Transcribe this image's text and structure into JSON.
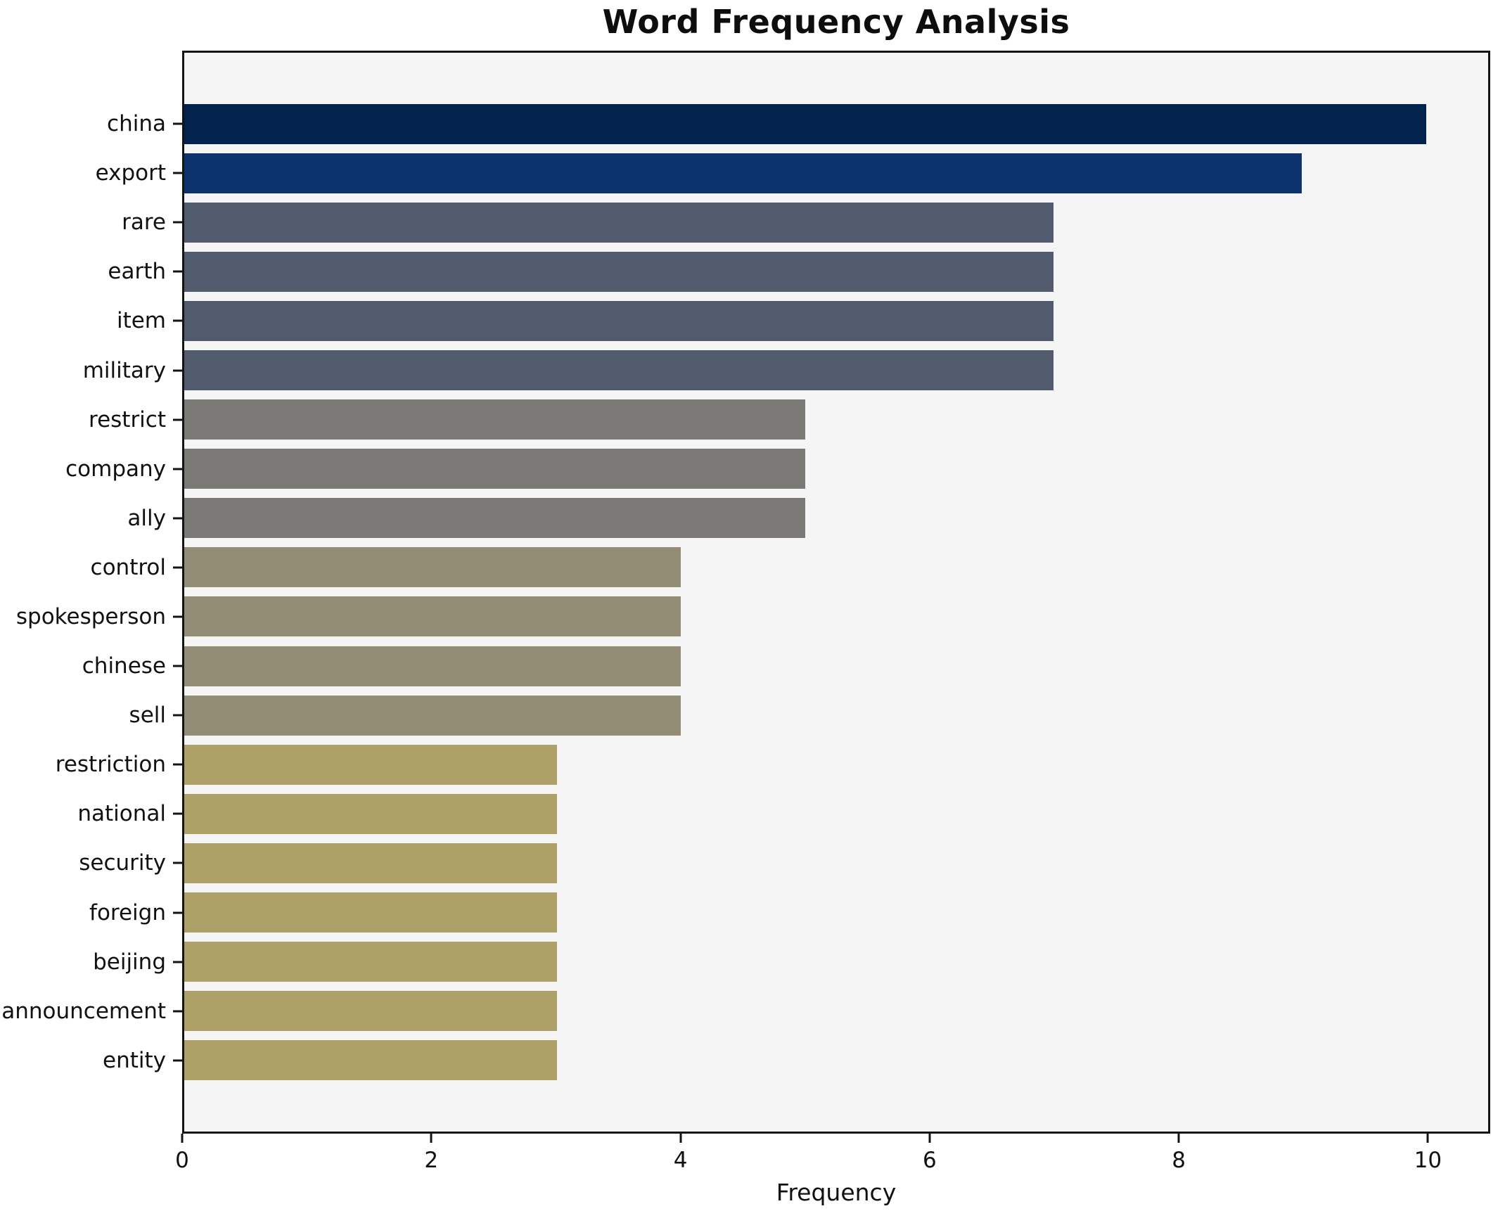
{
  "chart_data": {
    "type": "bar",
    "orientation": "horizontal",
    "title": "Word Frequency Analysis",
    "xlabel": "Frequency",
    "ylabel": "",
    "grid": false,
    "legend": null,
    "xlim": [
      0,
      10.5
    ],
    "xticks": [
      0,
      2,
      4,
      6,
      8,
      10
    ],
    "categories": [
      "china",
      "export",
      "rare",
      "earth",
      "item",
      "military",
      "restrict",
      "company",
      "ally",
      "control",
      "spokesperson",
      "chinese",
      "sell",
      "restriction",
      "national",
      "security",
      "foreign",
      "beijing",
      "announcement",
      "entity"
    ],
    "values": [
      10,
      9,
      7,
      7,
      7,
      7,
      5,
      5,
      5,
      4,
      4,
      4,
      4,
      3,
      3,
      3,
      3,
      3,
      3,
      3
    ],
    "bar_colors": [
      "#02234e",
      "#0d336f",
      "#525a6e",
      "#525a6e",
      "#525a6e",
      "#525a6e",
      "#7b7a77",
      "#7b7a77",
      "#7b7a77",
      "#948d75",
      "#948d75",
      "#948d75",
      "#948d75",
      "#ada168",
      "#ada168",
      "#ada168",
      "#ada168",
      "#ada168",
      "#ada168",
      "#ada168"
    ],
    "colors": {
      "plot_background": "#f5f5f5",
      "figure_background": "#ffffff",
      "axis": "#141414",
      "text": "#111111"
    }
  }
}
